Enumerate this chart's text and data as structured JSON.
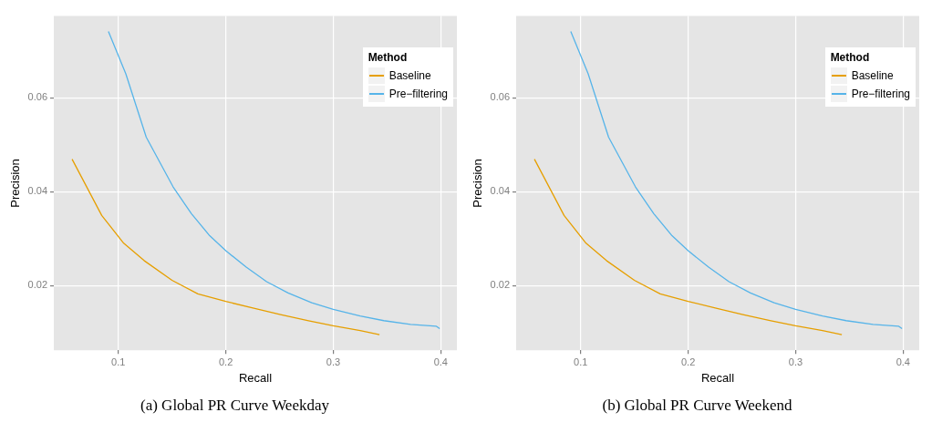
{
  "chart_data": [
    {
      "type": "line",
      "xlabel": "Recall",
      "ylabel": "Precision",
      "legend_title": "Method",
      "legend": "top right",
      "grid": true,
      "xlim": [
        0.04,
        0.415
      ],
      "xticks": [
        0.1,
        0.2,
        0.3,
        0.4
      ],
      "ylim": [
        0.0062,
        0.0774
      ],
      "yticks": [
        0.02,
        0.04,
        0.06
      ],
      "annotations": [
        "(a) Global PR Curve Weekday"
      ],
      "series": [
        {
          "name": "Baseline",
          "color": "#e69f00",
          "x": [
            0.057,
            0.0846,
            0.105,
            0.124,
            0.15,
            0.174,
            0.2,
            0.227,
            0.251,
            0.277,
            0.3,
            0.325,
            0.343
          ],
          "values": [
            0.0469,
            0.0349,
            0.029,
            0.0253,
            0.0211,
            0.0182,
            0.0166,
            0.0151,
            0.0138,
            0.0125,
            0.0114,
            0.0104,
            0.0095
          ]
        },
        {
          "name": "Pre−filtering",
          "color": "#56b4e9",
          "x": [
            0.0908,
            0.107,
            0.126,
            0.151,
            0.168,
            0.185,
            0.2,
            0.219,
            0.238,
            0.258,
            0.28,
            0.3,
            0.325,
            0.347,
            0.372,
            0.396,
            0.399
          ],
          "values": [
            0.0741,
            0.0651,
            0.0516,
            0.041,
            0.0353,
            0.0306,
            0.0274,
            0.0239,
            0.0208,
            0.0184,
            0.0163,
            0.0149,
            0.0135,
            0.0125,
            0.0117,
            0.0113,
            0.0108
          ]
        }
      ]
    },
    {
      "type": "line",
      "xlabel": "Recall",
      "ylabel": "Precision",
      "legend_title": "Method",
      "legend": "top right",
      "grid": true,
      "xlim": [
        0.04,
        0.415
      ],
      "xticks": [
        0.1,
        0.2,
        0.3,
        0.4
      ],
      "ylim": [
        0.0062,
        0.0774
      ],
      "yticks": [
        0.02,
        0.04,
        0.06
      ],
      "annotations": [
        "(b) Global PR Curve Weekend"
      ],
      "series": [
        {
          "name": "Baseline",
          "color": "#e69f00",
          "x": [
            0.057,
            0.0846,
            0.105,
            0.124,
            0.15,
            0.174,
            0.2,
            0.227,
            0.251,
            0.277,
            0.3,
            0.325,
            0.343
          ],
          "values": [
            0.0469,
            0.0349,
            0.029,
            0.0253,
            0.0211,
            0.0182,
            0.0166,
            0.0151,
            0.0138,
            0.0125,
            0.0114,
            0.0104,
            0.0095
          ]
        },
        {
          "name": "Pre−filtering",
          "color": "#56b4e9",
          "x": [
            0.0908,
            0.107,
            0.126,
            0.151,
            0.168,
            0.185,
            0.2,
            0.219,
            0.238,
            0.258,
            0.28,
            0.3,
            0.325,
            0.347,
            0.372,
            0.396,
            0.399
          ],
          "values": [
            0.0741,
            0.0651,
            0.0516,
            0.041,
            0.0353,
            0.0306,
            0.0274,
            0.0239,
            0.0208,
            0.0184,
            0.0163,
            0.0149,
            0.0135,
            0.0125,
            0.0117,
            0.0113,
            0.0108
          ]
        }
      ]
    }
  ]
}
